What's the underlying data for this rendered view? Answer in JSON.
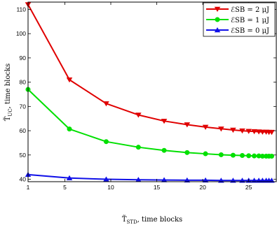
{
  "chart_data": {
    "type": "line",
    "xlabel": {
      "main": "T̃",
      "sub": "STD",
      "rest": ", time blocks"
    },
    "ylabel": {
      "main": "T̃",
      "sub": "UC",
      "rest": ", time blocks"
    },
    "xlim": [
      1,
      28
    ],
    "ylim": [
      39,
      113
    ],
    "xticks": [
      1,
      5,
      10,
      15,
      20,
      25
    ],
    "yticks": [
      40,
      50,
      60,
      70,
      80,
      90,
      100,
      110
    ],
    "grid": false,
    "legend_position": "top-right",
    "series": [
      {
        "name": "ℰSB = 2 μJ",
        "color": "#e00000",
        "marker": "triangle-down",
        "x": [
          1,
          5.5,
          9.5,
          13,
          15.8,
          18.3,
          20.3,
          22,
          23.3,
          24.3,
          25,
          25.6,
          26.1,
          26.5,
          26.9,
          27.2,
          27.5
        ],
        "y": [
          112,
          81,
          71.2,
          66.5,
          64,
          62.5,
          61.5,
          60.8,
          60.3,
          60,
          59.8,
          59.7,
          59.6,
          59.5,
          59.5,
          59.4,
          59.4
        ]
      },
      {
        "name": "ℰSB = 1 μJ",
        "color": "#00e000",
        "marker": "circle",
        "x": [
          1,
          5.5,
          9.5,
          13,
          15.8,
          18.3,
          20.3,
          22,
          23.3,
          24.3,
          25,
          25.6,
          26.1,
          26.5,
          26.9,
          27.2,
          27.5
        ],
        "y": [
          77,
          60.7,
          55.5,
          53.2,
          51.9,
          51,
          50.5,
          50.1,
          49.9,
          49.8,
          49.7,
          49.6,
          49.6,
          49.5,
          49.5,
          49.5,
          49.5
        ]
      },
      {
        "name": "ℰSB = 0 μJ",
        "color": "#1010e8",
        "marker": "triangle-up",
        "x": [
          1,
          5.5,
          9.5,
          13,
          15.8,
          18.3,
          20.3,
          22,
          23.3,
          24.3,
          25,
          25.6,
          26.1,
          26.5,
          26.9,
          27.2,
          27.5
        ],
        "y": [
          41.9,
          40.5,
          40,
          39.8,
          39.7,
          39.6,
          39.6,
          39.5,
          39.5,
          39.5,
          39.5,
          39.5,
          39.5,
          39.5,
          39.5,
          39.5,
          39.5
        ]
      }
    ]
  }
}
